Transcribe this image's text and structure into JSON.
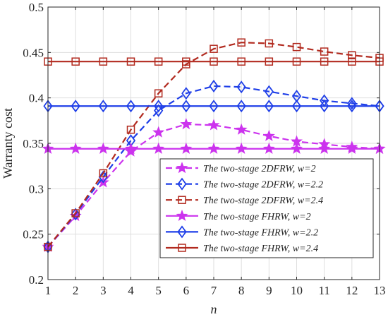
{
  "chart_data": {
    "type": "line",
    "xlabel": "n",
    "ylabel": "Warranty cost",
    "xlim": [
      1,
      13
    ],
    "ylim": [
      0.2,
      0.5
    ],
    "x": [
      1,
      2,
      3,
      4,
      5,
      6,
      7,
      8,
      9,
      10,
      11,
      12,
      13
    ],
    "x_ticks": [
      "1",
      "2",
      "3",
      "4",
      "5",
      "6",
      "7",
      "8",
      "9",
      "10",
      "11",
      "12",
      "13"
    ],
    "y_ticks": [
      {
        "value": 0.2,
        "label": "0.2"
      },
      {
        "value": 0.25,
        "label": "0.25"
      },
      {
        "value": 0.3,
        "label": "0.3"
      },
      {
        "value": 0.35,
        "label": "0.35"
      },
      {
        "value": 0.4,
        "label": "0.4"
      },
      {
        "value": 0.45,
        "label": "0.45"
      },
      {
        "value": 0.5,
        "label": "0.5"
      }
    ],
    "grid": true,
    "legend_position": "bottom-right",
    "series": [
      {
        "name": "The two-stage 2DFRW, w=2",
        "color": "#cc33ee",
        "dash": true,
        "marker": "star",
        "values": [
          0.236,
          0.27,
          0.307,
          0.341,
          0.362,
          0.371,
          0.37,
          0.365,
          0.358,
          0.352,
          0.349,
          0.346,
          0.344
        ]
      },
      {
        "name": "The two-stage 2DFRW, w=2.2",
        "color": "#1f3fe8",
        "dash": true,
        "marker": "diamond",
        "values": [
          0.236,
          0.272,
          0.313,
          0.353,
          0.386,
          0.405,
          0.413,
          0.412,
          0.407,
          0.402,
          0.397,
          0.394,
          0.391
        ]
      },
      {
        "name": "The two-stage 2DFRW, w=2.4",
        "color": "#b22a1f",
        "dash": true,
        "marker": "square",
        "values": [
          0.236,
          0.273,
          0.317,
          0.365,
          0.405,
          0.437,
          0.454,
          0.461,
          0.46,
          0.456,
          0.451,
          0.447,
          0.444
        ]
      },
      {
        "name": "The two-stage FHRW, w=2",
        "color": "#cc33ee",
        "dash": false,
        "marker": "star",
        "values": [
          0.344,
          0.344,
          0.344,
          0.344,
          0.344,
          0.344,
          0.344,
          0.344,
          0.344,
          0.344,
          0.344,
          0.344,
          0.344
        ]
      },
      {
        "name": "The two-stage FHRW, w=2.2",
        "color": "#1f3fe8",
        "dash": false,
        "marker": "diamond",
        "values": [
          0.391,
          0.391,
          0.391,
          0.391,
          0.391,
          0.391,
          0.391,
          0.391,
          0.391,
          0.391,
          0.391,
          0.391,
          0.391
        ]
      },
      {
        "name": "The two-stage FHRW, w=2.4",
        "color": "#b22a1f",
        "dash": false,
        "marker": "square",
        "values": [
          0.44,
          0.44,
          0.44,
          0.44,
          0.44,
          0.44,
          0.44,
          0.44,
          0.44,
          0.44,
          0.44,
          0.44,
          0.44
        ]
      }
    ]
  }
}
